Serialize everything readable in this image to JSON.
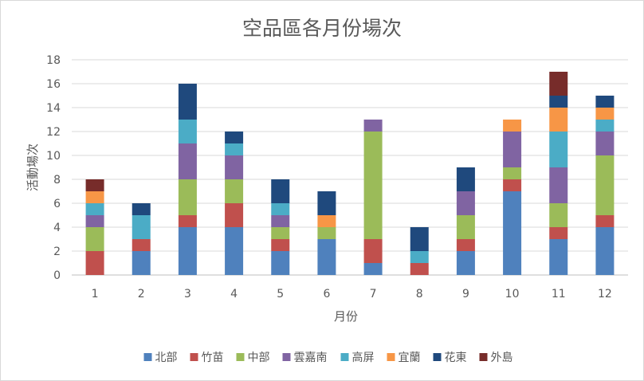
{
  "chart_data": {
    "type": "bar",
    "stacked": true,
    "title": "空品區各月份場次",
    "xlabel": "月份",
    "ylabel": "活動場次",
    "categories": [
      "1",
      "2",
      "3",
      "4",
      "5",
      "6",
      "7",
      "8",
      "9",
      "10",
      "11",
      "12"
    ],
    "ylim": [
      0,
      18
    ],
    "yticks": [
      0,
      2,
      4,
      6,
      8,
      10,
      12,
      14,
      16,
      18
    ],
    "grid": true,
    "legend_position": "bottom",
    "series": [
      {
        "name": "北部",
        "color": "#4f81bd",
        "values": [
          0,
          2,
          4,
          4,
          2,
          3,
          1,
          0,
          2,
          7,
          3,
          4
        ]
      },
      {
        "name": "竹苗",
        "color": "#c0504d",
        "values": [
          2,
          1,
          1,
          2,
          1,
          0,
          2,
          1,
          1,
          1,
          1,
          1
        ]
      },
      {
        "name": "中部",
        "color": "#9bbb59",
        "values": [
          2,
          0,
          3,
          2,
          1,
          1,
          9,
          0,
          2,
          1,
          2,
          5
        ]
      },
      {
        "name": "雲嘉南",
        "color": "#8064a2",
        "values": [
          1,
          0,
          3,
          2,
          1,
          0,
          1,
          0,
          2,
          3,
          3,
          2
        ]
      },
      {
        "name": "高屏",
        "color": "#4bacc6",
        "values": [
          1,
          2,
          2,
          1,
          1,
          0,
          0,
          1,
          0,
          0,
          3,
          1
        ]
      },
      {
        "name": "宜蘭",
        "color": "#f79646",
        "values": [
          1,
          0,
          0,
          0,
          0,
          1,
          0,
          0,
          0,
          1,
          2,
          1
        ]
      },
      {
        "name": "花東",
        "color": "#1f497d",
        "values": [
          0,
          1,
          3,
          1,
          2,
          2,
          0,
          2,
          2,
          0,
          1,
          1
        ]
      },
      {
        "name": "外島",
        "color": "#772c2a",
        "values": [
          1,
          0,
          0,
          0,
          0,
          0,
          0,
          0,
          0,
          0,
          2,
          0
        ]
      }
    ]
  }
}
